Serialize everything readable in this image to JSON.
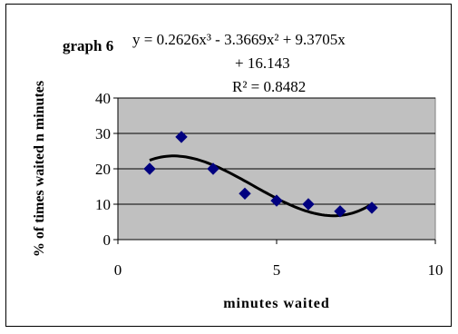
{
  "chart_data": {
    "type": "scatter",
    "title": "graph 6",
    "equation": {
      "line1": "y = 0.2626x³ - 3.3669x² + 9.3705x",
      "line2": "+ 16.143",
      "r2": "R² = 0.8482"
    },
    "xlabel": "minutes waited",
    "ylabel": "% of times waited n minutes",
    "xlim": [
      0,
      10
    ],
    "ylim": [
      0,
      40
    ],
    "x_ticks": [
      "0",
      "5",
      "10"
    ],
    "y_ticks": [
      "0",
      "10",
      "20",
      "30",
      "40"
    ],
    "grid": true,
    "plot_area_color": "#c0c0c0",
    "marker_color": "#000080",
    "trendline_color": "#000000",
    "series": [
      {
        "points": [
          {
            "x": 1,
            "y": 20
          },
          {
            "x": 2,
            "y": 29
          },
          {
            "x": 3,
            "y": 20
          },
          {
            "x": 4,
            "y": 13
          },
          {
            "x": 5,
            "y": 11
          },
          {
            "x": 6,
            "y": 10
          },
          {
            "x": 7,
            "y": 8
          },
          {
            "x": 8,
            "y": 9
          }
        ]
      }
    ],
    "trendline": {
      "type": "polynomial",
      "coefficients": [
        0.2626,
        -3.3669,
        9.3705,
        16.143
      ],
      "x_range": [
        1,
        8
      ]
    }
  }
}
